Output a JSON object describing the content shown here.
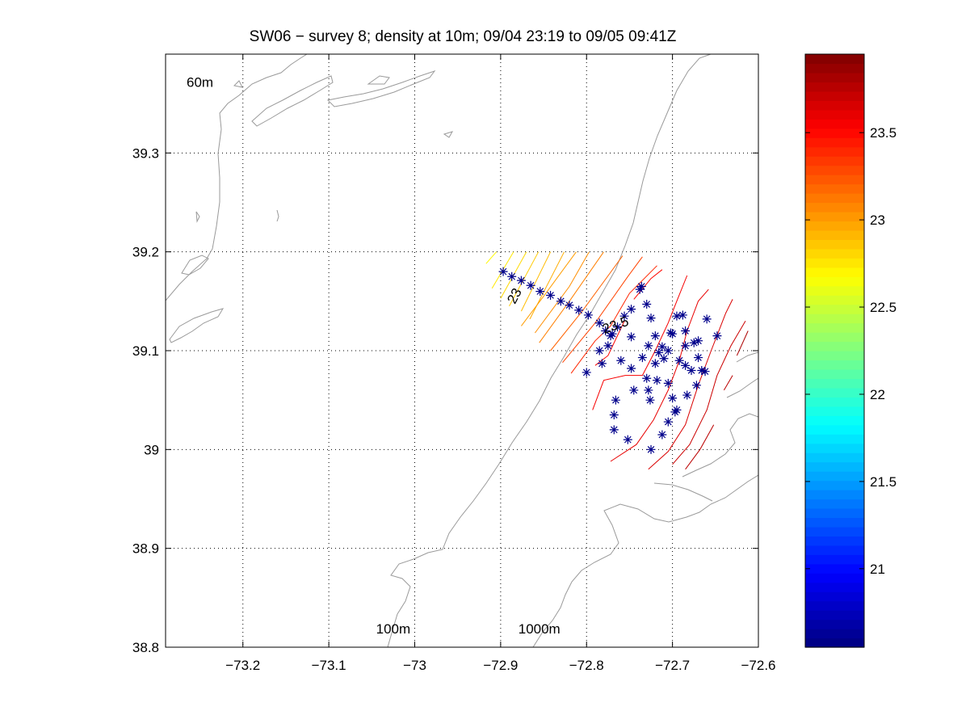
{
  "chart_data": {
    "type": "contour",
    "title": "SW06 − survey 8; density at 10m; 09/04 23:19 to 09/05 09:41Z",
    "xlabel": "",
    "ylabel": "",
    "xlim": [
      -73.29,
      -72.6
    ],
    "ylim": [
      38.8,
      39.4
    ],
    "grid": true,
    "x_ticks": [
      "−73.2",
      "−73.1",
      "−73",
      "−72.9",
      "−72.8",
      "−72.7",
      "−72.6"
    ],
    "x_tick_values": [
      -73.2,
      -73.1,
      -73.0,
      -72.9,
      -72.8,
      -72.7,
      -72.6
    ],
    "y_ticks": [
      "38.8",
      "38.9",
      "39",
      "39.1",
      "39.2",
      "39.3"
    ],
    "y_tick_values": [
      38.8,
      38.9,
      39.0,
      39.1,
      39.2,
      39.3
    ],
    "colorbar": {
      "range": [
        20.55,
        23.95
      ],
      "ticks": [
        "21",
        "21.5",
        "22",
        "22.5",
        "23",
        "23.5"
      ],
      "tick_values": [
        21,
        21.5,
        22,
        22.5,
        23,
        23.5
      ]
    },
    "isobath_labels": [
      {
        "text": "60m",
        "lon": -73.25,
        "lat": 39.367
      },
      {
        "text": "100m",
        "lon": -73.025,
        "lat": 38.814
      },
      {
        "text": "1000m",
        "lon": -72.855,
        "lat": 38.814
      }
    ],
    "contour_labels": [
      {
        "text": "23",
        "lon": -72.883,
        "lat": 39.155,
        "rotate": -62
      },
      {
        "text": "23.5",
        "lon": -72.766,
        "lat": 39.125,
        "rotate": -20
      }
    ],
    "contours": [
      {
        "value": 22.7,
        "points": [
          [
            -72.917,
            39.188
          ],
          [
            -72.905,
            39.2
          ]
        ]
      },
      {
        "value": 22.75,
        "points": [
          [
            -72.91,
            39.163
          ],
          [
            -72.885,
            39.2
          ]
        ]
      },
      {
        "value": 22.8,
        "points": [
          [
            -72.9,
            39.153
          ],
          [
            -72.87,
            39.2
          ]
        ]
      },
      {
        "value": 22.85,
        "points": [
          [
            -72.89,
            39.145
          ],
          [
            -72.856,
            39.2
          ]
        ]
      },
      {
        "value": 22.9,
        "points": [
          [
            -72.876,
            39.14
          ],
          [
            -72.842,
            39.2
          ]
        ]
      },
      {
        "value": 22.95,
        "points": [
          [
            -72.866,
            39.132
          ],
          [
            -72.826,
            39.2
          ]
        ]
      },
      {
        "value": 23.0,
        "points": [
          [
            -72.876,
            39.125
          ],
          [
            -72.85,
            39.155
          ],
          [
            -72.812,
            39.2
          ]
        ]
      },
      {
        "value": 23.05,
        "points": [
          [
            -72.86,
            39.118
          ],
          [
            -72.82,
            39.165
          ],
          [
            -72.797,
            39.2
          ]
        ]
      },
      {
        "value": 23.1,
        "points": [
          [
            -72.855,
            39.108
          ],
          [
            -72.82,
            39.15
          ],
          [
            -72.78,
            39.2
          ]
        ]
      },
      {
        "value": 23.2,
        "points": [
          [
            -72.842,
            39.1
          ],
          [
            -72.805,
            39.14
          ],
          [
            -72.758,
            39.196
          ]
        ]
      },
      {
        "value": 23.3,
        "points": [
          [
            -72.828,
            39.088
          ],
          [
            -72.79,
            39.128
          ],
          [
            -72.752,
            39.175
          ],
          [
            -72.735,
            39.195
          ]
        ]
      },
      {
        "value": 23.4,
        "points": [
          [
            -72.818,
            39.077
          ],
          [
            -72.79,
            39.11
          ],
          [
            -72.772,
            39.125
          ],
          [
            -72.75,
            39.158
          ],
          [
            -72.718,
            39.186
          ]
        ]
      },
      {
        "value": 23.5,
        "points": [
          [
            -72.79,
            39.085
          ],
          [
            -72.775,
            39.095
          ],
          [
            -72.756,
            39.13
          ]
        ]
      },
      {
        "value": 23.5,
        "points": [
          [
            -72.745,
            39.152
          ],
          [
            -72.725,
            39.173
          ],
          [
            -72.712,
            39.182
          ]
        ]
      },
      {
        "value": 23.55,
        "points": [
          [
            -72.793,
            39.04
          ],
          [
            -72.78,
            39.07
          ],
          [
            -72.755,
            39.075
          ],
          [
            -72.735,
            39.075
          ],
          [
            -72.72,
            39.1
          ],
          [
            -72.705,
            39.128
          ],
          [
            -72.695,
            39.15
          ],
          [
            -72.683,
            39.176
          ]
        ]
      },
      {
        "value": 23.6,
        "points": [
          [
            -72.772,
            38.988
          ],
          [
            -72.742,
            39.005
          ],
          [
            -72.722,
            39.03
          ],
          [
            -72.705,
            39.06
          ],
          [
            -72.692,
            39.09
          ],
          [
            -72.683,
            39.12
          ],
          [
            -72.67,
            39.15
          ],
          [
            -72.658,
            39.162
          ]
        ]
      },
      {
        "value": 23.65,
        "points": [
          [
            -72.728,
            38.98
          ],
          [
            -72.705,
            38.998
          ],
          [
            -72.685,
            39.025
          ],
          [
            -72.67,
            39.065
          ],
          [
            -72.655,
            39.1
          ],
          [
            -72.638,
            39.138
          ],
          [
            -72.63,
            39.152
          ]
        ]
      },
      {
        "value": 23.7,
        "points": [
          [
            -72.7,
            38.985
          ],
          [
            -72.68,
            39.005
          ],
          [
            -72.66,
            39.04
          ],
          [
            -72.648,
            39.075
          ],
          [
            -72.632,
            39.105
          ],
          [
            -72.615,
            39.13
          ]
        ]
      },
      {
        "value": 23.75,
        "points": [
          [
            -72.685,
            38.98
          ],
          [
            -72.668,
            39.0
          ],
          [
            -72.652,
            39.025
          ]
        ]
      },
      {
        "value": 23.75,
        "points": [
          [
            -72.64,
            39.06
          ],
          [
            -72.63,
            39.075
          ]
        ]
      },
      {
        "value": 23.8,
        "points": [
          [
            -72.625,
            39.095
          ],
          [
            -72.612,
            39.12
          ]
        ]
      }
    ],
    "stations": [
      [
        -72.897,
        39.18
      ],
      [
        -72.887,
        39.175
      ],
      [
        -72.876,
        39.171
      ],
      [
        -72.865,
        39.166
      ],
      [
        -72.854,
        39.16
      ],
      [
        -72.842,
        39.156
      ],
      [
        -72.83,
        39.15
      ],
      [
        -72.82,
        39.146
      ],
      [
        -72.809,
        39.141
      ],
      [
        -72.798,
        39.136
      ],
      [
        -72.785,
        39.128
      ],
      [
        -72.778,
        39.12
      ],
      [
        -72.772,
        39.115
      ],
      [
        -72.764,
        39.124
      ],
      [
        -72.756,
        39.135
      ],
      [
        -72.748,
        39.142
      ],
      [
        -72.738,
        39.162
      ],
      [
        -72.736,
        39.165
      ],
      [
        -72.73,
        39.147
      ],
      [
        -72.725,
        39.133
      ],
      [
        -72.728,
        39.105
      ],
      [
        -72.72,
        39.115
      ],
      [
        -72.735,
        39.093
      ],
      [
        -72.748,
        39.114
      ],
      [
        -72.77,
        39.117
      ],
      [
        -72.775,
        39.105
      ],
      [
        -72.785,
        39.1
      ],
      [
        -72.782,
        39.087
      ],
      [
        -72.8,
        39.078
      ],
      [
        -72.76,
        39.09
      ],
      [
        -72.748,
        39.082
      ],
      [
        -72.73,
        39.072
      ],
      [
        -72.72,
        39.087
      ],
      [
        -72.716,
        39.098
      ],
      [
        -72.712,
        39.104
      ],
      [
        -72.71,
        39.092
      ],
      [
        -72.705,
        39.1
      ],
      [
        -72.702,
        39.118
      ],
      [
        -72.7,
        39.117
      ],
      [
        -72.695,
        39.135
      ],
      [
        -72.688,
        39.136
      ],
      [
        -72.685,
        39.12
      ],
      [
        -72.675,
        39.108
      ],
      [
        -72.67,
        39.11
      ],
      [
        -72.685,
        39.105
      ],
      [
        -72.692,
        39.09
      ],
      [
        -72.685,
        39.085
      ],
      [
        -72.678,
        39.08
      ],
      [
        -72.666,
        39.08
      ],
      [
        -72.662,
        39.079
      ],
      [
        -72.67,
        39.093
      ],
      [
        -72.648,
        39.115
      ],
      [
        -72.66,
        39.132
      ],
      [
        -72.705,
        39.067
      ],
      [
        -72.718,
        39.07
      ],
      [
        -72.728,
        39.06
      ],
      [
        -72.745,
        39.06
      ],
      [
        -72.726,
        39.05
      ],
      [
        -72.766,
        39.05
      ],
      [
        -72.7,
        39.052
      ],
      [
        -72.683,
        39.055
      ],
      [
        -72.695,
        39.04
      ],
      [
        -72.697,
        39.038
      ],
      [
        -72.705,
        39.028
      ],
      [
        -72.768,
        39.035
      ],
      [
        -72.768,
        39.02
      ],
      [
        -72.712,
        39.015
      ],
      [
        -72.752,
        39.01
      ],
      [
        -72.725,
        39.0
      ],
      [
        -72.672,
        39.065
      ]
    ]
  }
}
